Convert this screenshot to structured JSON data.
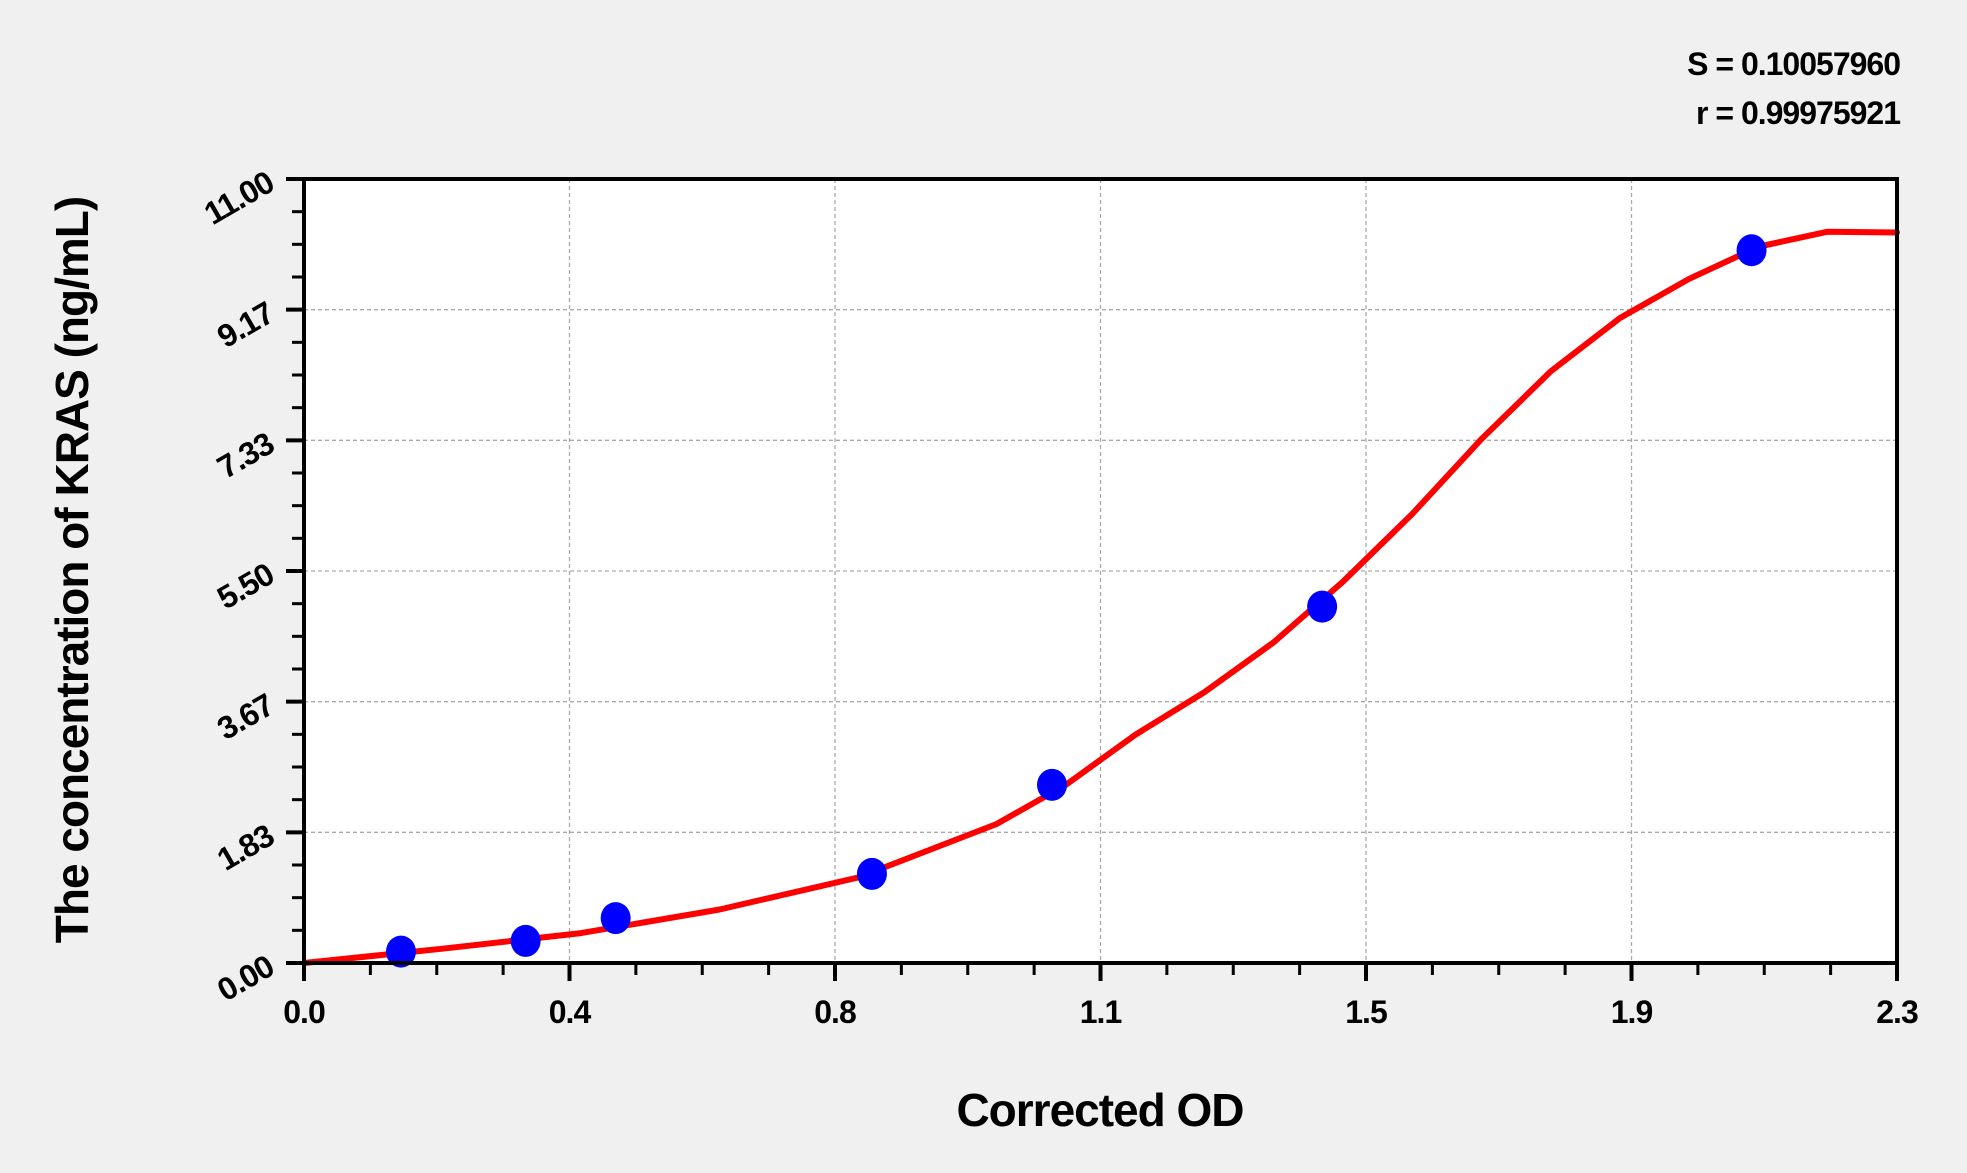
{
  "chart_data": {
    "type": "scatter",
    "title": "",
    "xlabel": "Corrected OD",
    "ylabel": "The concentration of KRAS (ng/mL)",
    "xlim": [
      0,
      2.3
    ],
    "ylim": [
      0,
      11
    ],
    "x_ticks": [
      "0.0",
      "0.4",
      "0.8",
      "1.1",
      "1.5",
      "1.9",
      "2.3"
    ],
    "y_ticks": [
      "0.00",
      "1.83",
      "3.67",
      "5.50",
      "7.33",
      "9.17",
      "11.00"
    ],
    "grid": true,
    "annotations": [
      "S = 0.10057960",
      "r = 0.99975921"
    ],
    "series": [
      {
        "type": "scatter",
        "color": "#0000ff",
        "x": [
          0.14,
          0.32,
          0.45,
          0.82,
          1.08,
          1.47,
          2.09
        ],
        "y": [
          0.16,
          0.31,
          0.63,
          1.25,
          2.5,
          5.0,
          10.0
        ]
      },
      {
        "type": "line",
        "color": "#ff0000",
        "x": [
          0.0,
          0.2,
          0.4,
          0.6,
          0.8,
          1.0,
          1.1,
          1.2,
          1.3,
          1.4,
          1.5,
          1.6,
          1.7,
          1.8,
          1.9,
          2.0,
          2.1,
          2.2,
          2.3
        ],
        "y": [
          0.0,
          0.2,
          0.42,
          0.75,
          1.2,
          1.95,
          2.5,
          3.2,
          3.8,
          4.5,
          5.35,
          6.3,
          7.35,
          8.3,
          9.05,
          9.6,
          10.05,
          10.26,
          10.25
        ]
      }
    ]
  }
}
